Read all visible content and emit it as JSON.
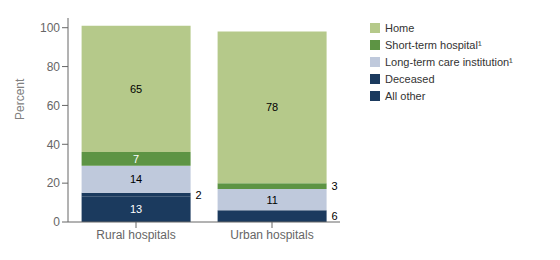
{
  "chart_data": {
    "type": "bar",
    "stacked": true,
    "categories": [
      "Rural hospitals",
      "Urban hospitals"
    ],
    "series": [
      {
        "name": "All other",
        "color": "#1b3a5e",
        "values": [
          13,
          6
        ]
      },
      {
        "name": "Deceased",
        "color": "#1b3a5e",
        "values": [
          2,
          0
        ]
      },
      {
        "name": "Long-term care institution¹",
        "color": "#bfc9dc",
        "values": [
          14,
          11
        ]
      },
      {
        "name": "Short-term hospital¹",
        "color": "#5d9444",
        "values": [
          7,
          3
        ]
      },
      {
        "name": "Home",
        "color": "#b5c98a",
        "values": [
          65,
          78
        ]
      }
    ],
    "ylabel": "Percent",
    "ylim": [
      0,
      105
    ],
    "yticks": [
      0,
      20,
      40,
      60,
      80,
      100
    ],
    "data_labels": true,
    "legend": "right",
    "grid": false
  }
}
